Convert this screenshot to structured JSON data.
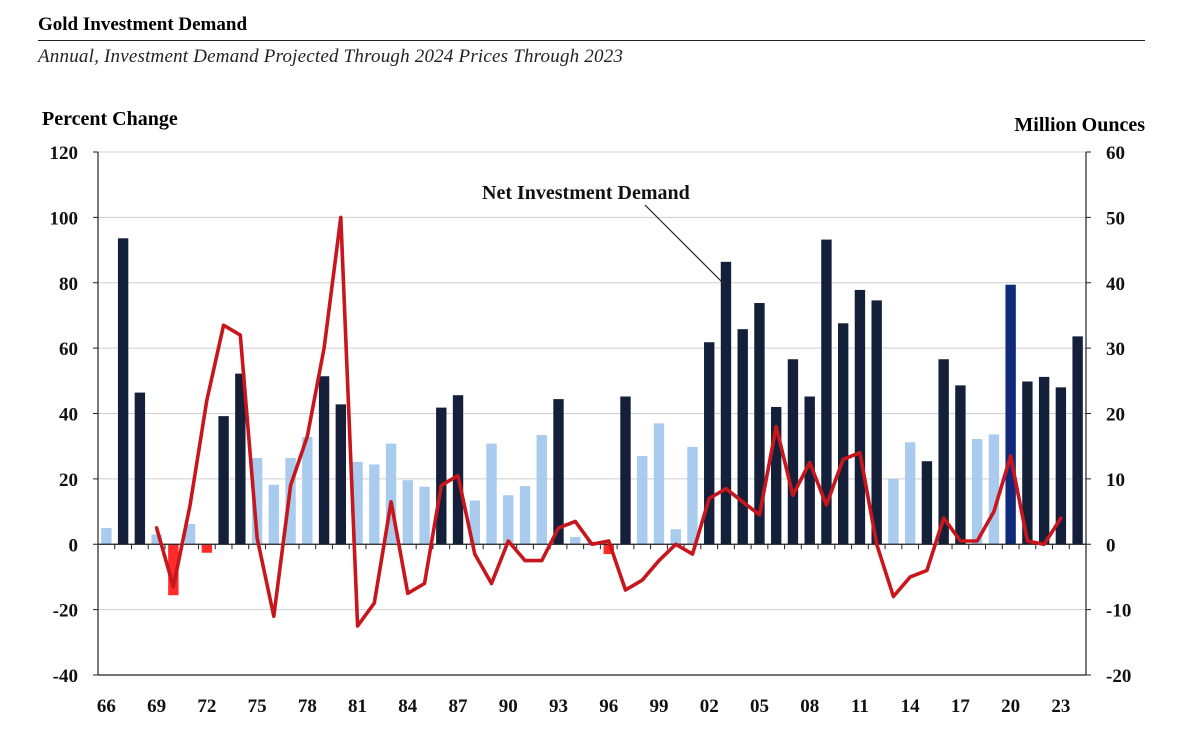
{
  "chart_data": {
    "type": "bar",
    "title": "Gold Investment Demand",
    "subtitle": "Annual, Investment Demand Projected Through 2024 Prices Through 2023",
    "ylabel_left": "Percent Change",
    "ylabel_right": "Million Ounces",
    "ylim_left": [
      -40,
      120
    ],
    "ylim_right": [
      -20,
      60
    ],
    "yticks_left": [
      "120",
      "100",
      "80",
      "60",
      "40",
      "20",
      "0",
      "-20",
      "-40"
    ],
    "yticks_right": [
      "60",
      "50",
      "40",
      "30",
      "20",
      "10",
      "0",
      "-10",
      "-20"
    ],
    "x_tick_labels": [
      "66",
      "69",
      "72",
      "75",
      "78",
      "81",
      "84",
      "87",
      "90",
      "93",
      "96",
      "99",
      "02",
      "05",
      "08",
      "11",
      "14",
      "17",
      "20",
      "23"
    ],
    "years": [
      1966,
      1967,
      1968,
      1969,
      1970,
      1971,
      1972,
      1973,
      1974,
      1975,
      1976,
      1977,
      1978,
      1979,
      1980,
      1981,
      1982,
      1983,
      1984,
      1985,
      1986,
      1987,
      1988,
      1989,
      1990,
      1991,
      1992,
      1993,
      1994,
      1995,
      1996,
      1997,
      1998,
      1999,
      2000,
      2001,
      2002,
      2003,
      2004,
      2005,
      2006,
      2007,
      2008,
      2009,
      2010,
      2011,
      2012,
      2013,
      2014,
      2015,
      2016,
      2017,
      2018,
      2019,
      2020,
      2021,
      2022,
      2023,
      2024
    ],
    "series": [
      {
        "name": "Net Investment Demand",
        "kind": "bar",
        "axis": "right",
        "values": [
          2.5,
          46.8,
          23.2,
          1.5,
          -7.8,
          3.1,
          -1.3,
          19.6,
          26.1,
          13.2,
          9.1,
          13.2,
          16.4,
          25.7,
          21.4,
          12.6,
          12.2,
          15.4,
          9.8,
          8.8,
          20.9,
          22.8,
          6.7,
          15.4,
          7.5,
          8.9,
          16.7,
          22.2,
          1.1,
          0.4,
          -1.5,
          22.6,
          13.5,
          18.5,
          2.3,
          14.9,
          30.9,
          43.2,
          32.9,
          36.9,
          21.0,
          28.3,
          22.6,
          46.6,
          33.8,
          38.9,
          37.3,
          10.0,
          15.6,
          12.7,
          28.3,
          24.3,
          16.1,
          16.8,
          39.7,
          24.9,
          25.6,
          24.0,
          31.8
        ],
        "colors": [
          "#a9cbee",
          "#14203a",
          "#14203a",
          "#a9cbee",
          "#ff2a2a",
          "#a9cbee",
          "#ff2a2a",
          "#14203a",
          "#14203a",
          "#a9cbee",
          "#a9cbee",
          "#a9cbee",
          "#a9cbee",
          "#14203a",
          "#14203a",
          "#a9cbee",
          "#a9cbee",
          "#a9cbee",
          "#a9cbee",
          "#a9cbee",
          "#14203a",
          "#14203a",
          "#a9cbee",
          "#a9cbee",
          "#a9cbee",
          "#a9cbee",
          "#a9cbee",
          "#14203a",
          "#a9cbee",
          "#a9cbee",
          "#ff2a2a",
          "#14203a",
          "#a9cbee",
          "#a9cbee",
          "#a9cbee",
          "#a9cbee",
          "#14203a",
          "#14203a",
          "#14203a",
          "#14203a",
          "#14203a",
          "#14203a",
          "#14203a",
          "#14203a",
          "#14203a",
          "#14203a",
          "#14203a",
          "#a9cbee",
          "#a9cbee",
          "#14203a",
          "#14203a",
          "#14203a",
          "#a9cbee",
          "#a9cbee",
          "#10297a",
          "#14203a",
          "#14203a",
          "#14203a",
          "#14203a"
        ]
      },
      {
        "kind": "line",
        "axis": "left",
        "color": "#c8161d",
        "years": [
          1969,
          1970,
          1971,
          1972,
          1973,
          1974,
          1975,
          1976,
          1977,
          1978,
          1979,
          1980,
          1981,
          1982,
          1983,
          1984,
          1985,
          1986,
          1987,
          1988,
          1989,
          1990,
          1991,
          1992,
          1993,
          1994,
          1995,
          1996,
          1997,
          1998,
          1999,
          2000,
          2001,
          2002,
          2003,
          2004,
          2005,
          2006,
          2007,
          2008,
          2009,
          2010,
          2011,
          2012,
          2013,
          2014,
          2015,
          2016,
          2017,
          2018,
          2019,
          2020,
          2021,
          2022,
          2023
        ],
        "values": [
          5,
          -13,
          12,
          44,
          67,
          64,
          2,
          -22,
          18,
          33,
          60,
          100,
          -25,
          -18,
          13,
          -15,
          -12,
          18,
          21,
          -3,
          -12,
          1,
          -5,
          -5,
          5,
          7,
          0,
          1,
          -14,
          -11,
          -5,
          0,
          -3,
          14,
          17,
          13,
          9,
          36,
          15,
          25,
          12,
          26,
          28,
          0,
          -16,
          -10,
          -8,
          8,
          1,
          1,
          10,
          27,
          1,
          0,
          8
        ]
      }
    ],
    "annotation": "Net Investment Demand",
    "colors": {
      "bar_dark": "#14203a",
      "bar_light": "#a9cbee",
      "bar_negative": "#ff2a2a",
      "bar_2020": "#10297a",
      "line": "#c8161d",
      "grid": "#cfcfcf"
    }
  }
}
